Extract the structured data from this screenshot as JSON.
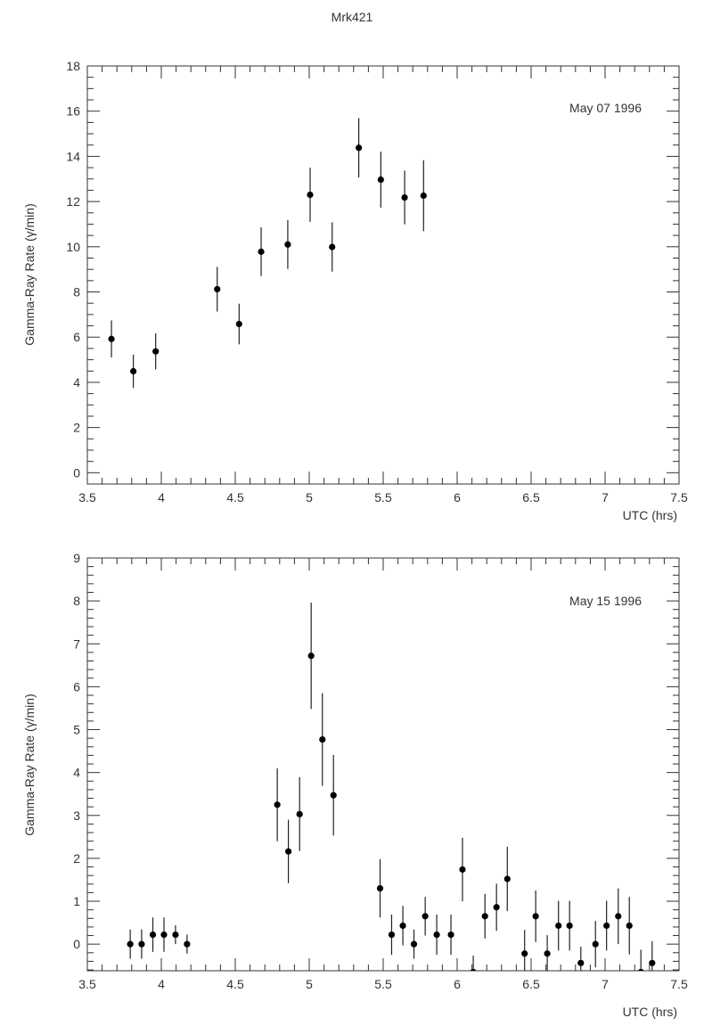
{
  "title": "Mrk421",
  "chart_data": [
    {
      "type": "scatter",
      "title": "Mrk421",
      "annotation": "May 07 1996",
      "xlabel": "UTC (hrs)",
      "ylabel": "Gamma-Ray Rate (γ/min)",
      "xlim": [
        3.5,
        7.5
      ],
      "ylim": [
        -0.5,
        18
      ],
      "xticks": [
        3.5,
        4,
        4.5,
        5,
        5.5,
        6,
        6.5,
        7,
        7.5
      ],
      "xtick_labels": [
        "3.5",
        "4",
        "4.5",
        "5",
        "5.5",
        "6",
        "6.5",
        "7",
        "7.5"
      ],
      "yticks": [
        0,
        2,
        4,
        6,
        8,
        10,
        12,
        14,
        16,
        18
      ],
      "ytick_labels": [
        "0",
        "2",
        "4",
        "6",
        "8",
        "10",
        "12",
        "14",
        "16",
        "18"
      ],
      "x_minor": 0.1,
      "y_minor": 0.5,
      "grid": false,
      "points": [
        {
          "x": 3.663,
          "y": 5.92,
          "err": 0.82
        },
        {
          "x": 3.811,
          "y": 4.49,
          "err": 0.74
        },
        {
          "x": 3.962,
          "y": 5.37,
          "err": 0.8
        },
        {
          "x": 4.378,
          "y": 8.12,
          "err": 0.99
        },
        {
          "x": 4.526,
          "y": 6.58,
          "err": 0.9
        },
        {
          "x": 4.675,
          "y": 9.78,
          "err": 1.08
        },
        {
          "x": 4.855,
          "y": 10.1,
          "err": 1.08
        },
        {
          "x": 5.006,
          "y": 12.3,
          "err": 1.2
        },
        {
          "x": 5.155,
          "y": 9.99,
          "err": 1.09
        },
        {
          "x": 5.335,
          "y": 14.38,
          "err": 1.31
        },
        {
          "x": 5.484,
          "y": 12.97,
          "err": 1.24
        },
        {
          "x": 5.645,
          "y": 12.18,
          "err": 1.19
        },
        {
          "x": 5.773,
          "y": 12.26,
          "err": 1.57
        }
      ]
    },
    {
      "type": "scatter",
      "annotation": "May 15 1996",
      "xlabel": "UTC (hrs)",
      "ylabel": "Gamma-Ray Rate (γ/min)",
      "xlim": [
        3.5,
        7.5
      ],
      "ylim": [
        -0.62,
        9
      ],
      "xticks": [
        3.5,
        4,
        4.5,
        5,
        5.5,
        6,
        6.5,
        7,
        7.5
      ],
      "xtick_labels": [
        "3.5",
        "4",
        "4.5",
        "5",
        "5.5",
        "6",
        "6.5",
        "7",
        "7.5"
      ],
      "yticks": [
        0,
        1,
        2,
        3,
        4,
        5,
        6,
        7,
        8,
        9
      ],
      "ytick_labels": [
        "0",
        "1",
        "2",
        "3",
        "4",
        "5",
        "6",
        "7",
        "8",
        "9"
      ],
      "x_minor": 0.1,
      "y_minor": 0.2,
      "grid": false,
      "points": [
        {
          "x": 3.79,
          "y": 0.0,
          "err": 0.34
        },
        {
          "x": 3.867,
          "y": 0.0,
          "err": 0.34
        },
        {
          "x": 3.943,
          "y": 0.22,
          "err": 0.4
        },
        {
          "x": 4.018,
          "y": 0.22,
          "err": 0.4
        },
        {
          "x": 4.096,
          "y": 0.22,
          "err": 0.22
        },
        {
          "x": 4.174,
          "y": 0.0,
          "err": 0.22
        },
        {
          "x": 4.784,
          "y": 3.25,
          "err": 0.85
        },
        {
          "x": 4.859,
          "y": 2.16,
          "err": 0.74
        },
        {
          "x": 4.935,
          "y": 3.03,
          "err": 0.86
        },
        {
          "x": 5.013,
          "y": 6.72,
          "err": 1.24
        },
        {
          "x": 5.089,
          "y": 4.77,
          "err": 1.08
        },
        {
          "x": 5.164,
          "y": 3.47,
          "err": 0.94
        },
        {
          "x": 5.479,
          "y": 1.3,
          "err": 0.68
        },
        {
          "x": 5.557,
          "y": 0.22,
          "err": 0.47
        },
        {
          "x": 5.633,
          "y": 0.43,
          "err": 0.46
        },
        {
          "x": 5.708,
          "y": 0.0,
          "err": 0.34
        },
        {
          "x": 5.784,
          "y": 0.65,
          "err": 0.45
        },
        {
          "x": 5.862,
          "y": 0.22,
          "err": 0.47
        },
        {
          "x": 5.958,
          "y": 0.22,
          "err": 0.47
        },
        {
          "x": 6.036,
          "y": 1.74,
          "err": 0.74
        },
        {
          "x": 6.109,
          "y": -0.65,
          "err": 0.38
        },
        {
          "x": 6.188,
          "y": 0.65,
          "err": 0.52
        },
        {
          "x": 6.266,
          "y": 0.86,
          "err": 0.55
        },
        {
          "x": 6.339,
          "y": 1.52,
          "err": 0.75
        },
        {
          "x": 6.456,
          "y": -0.22,
          "err": 0.55
        },
        {
          "x": 6.531,
          "y": 0.65,
          "err": 0.6
        },
        {
          "x": 6.609,
          "y": -0.22,
          "err": 0.43
        },
        {
          "x": 6.685,
          "y": 0.43,
          "err": 0.58
        },
        {
          "x": 6.76,
          "y": 0.43,
          "err": 0.58
        },
        {
          "x": 6.836,
          "y": -0.44,
          "err": 0.38
        },
        {
          "x": 6.935,
          "y": 0.0,
          "err": 0.54
        },
        {
          "x": 7.01,
          "y": 0.43,
          "err": 0.58
        },
        {
          "x": 7.089,
          "y": 0.65,
          "err": 0.65
        },
        {
          "x": 7.164,
          "y": 0.43,
          "err": 0.67
        },
        {
          "x": 7.242,
          "y": -0.65,
          "err": 0.52
        },
        {
          "x": 7.318,
          "y": -0.44,
          "err": 0.51
        }
      ]
    }
  ]
}
